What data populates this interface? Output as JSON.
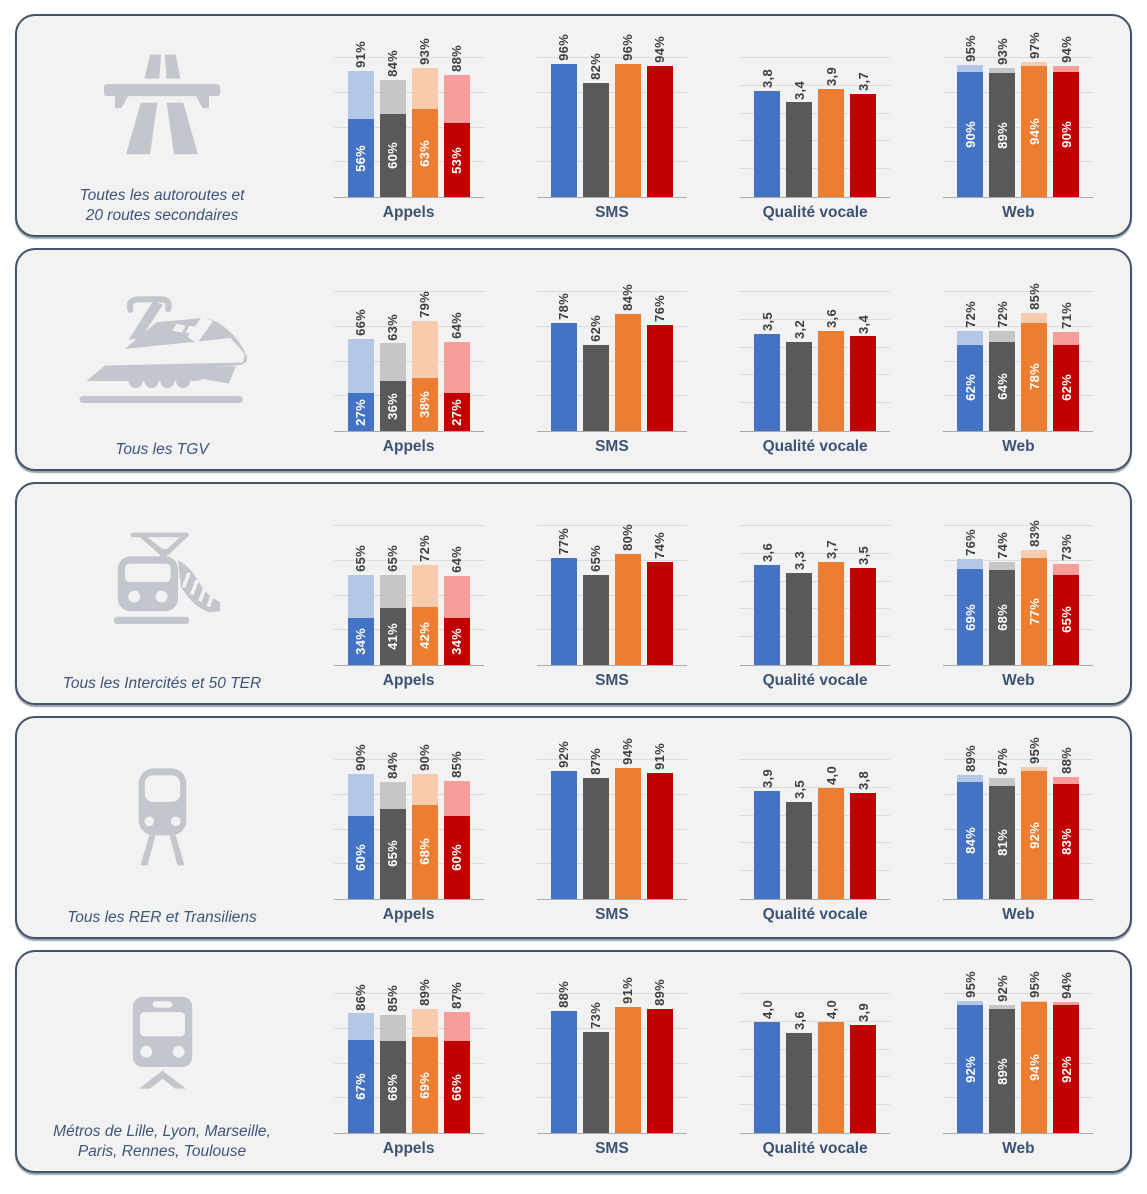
{
  "colors": {
    "page_background": "#FFFFFF",
    "panel_background": "#F2F2F3",
    "panel_border": "#44546A",
    "icon_gray": "#C3C6CC",
    "gridline": "#DBDBDB",
    "axis_baseline": "#ABABAB",
    "value_label": "#3F3F3F",
    "inner_value_label": "#FFFFFF",
    "chart_title": "#3C5472",
    "panel_label": "#3E5577"
  },
  "chart_data": {
    "type": "bar",
    "layout": "5 panels x 4 small bar charts, 4 bars per chart (series shown only by color: blue, dark-gray, orange, dark-red; stacked charts add a lighter tint for the upper segment)",
    "bar_colors": [
      "#4472C4",
      "#595959",
      "#ED7D31",
      "#C00000"
    ],
    "bar_colors_light": [
      "#B4C7E7",
      "#C6C6C6",
      "#F8CBAD",
      "#F79E9B"
    ],
    "percent_axis": {
      "ylim": [
        0,
        100
      ],
      "grid_step": 25
    },
    "score_axis": {
      "ylim": [
        0,
        5
      ],
      "grid_step": 1
    },
    "panels": [
      {
        "id": "autoroutes",
        "icon": "motorway-icon",
        "label_lines": [
          "Toutes les autoroutes et",
          "20 routes secondaires"
        ],
        "charts": [
          {
            "id": "appels",
            "title": "Appels",
            "kind": "stacked",
            "max": 100,
            "totals": [
              91,
              84,
              93,
              88
            ],
            "inner": [
              56,
              60,
              63,
              53
            ],
            "total_labels": [
              "91%",
              "84%",
              "93%",
              "88%"
            ],
            "inner_labels": [
              "56%",
              "60%",
              "63%",
              "53%"
            ]
          },
          {
            "id": "sms",
            "title": "SMS",
            "kind": "solid",
            "max": 100,
            "values": [
              96,
              82,
              96,
              94
            ],
            "labels": [
              "96%",
              "82%",
              "96%",
              "94%"
            ]
          },
          {
            "id": "qualite-vocale",
            "title": "Qualité vocale",
            "kind": "solid",
            "max": 5,
            "values": [
              3.8,
              3.4,
              3.9,
              3.7
            ],
            "labels": [
              "3,8",
              "3,4",
              "3,9",
              "3,7"
            ]
          },
          {
            "id": "web",
            "title": "Web",
            "kind": "stacked",
            "max": 100,
            "totals": [
              95,
              93,
              97,
              94
            ],
            "inner": [
              90,
              89,
              94,
              90
            ],
            "total_labels": [
              "95%",
              "93%",
              "97%",
              "94%"
            ],
            "inner_labels": [
              "90%",
              "89%",
              "94%",
              "90%"
            ]
          }
        ]
      },
      {
        "id": "tgv",
        "icon": "tgv-icon",
        "label_lines": [
          "Tous les TGV"
        ],
        "charts": [
          {
            "id": "appels",
            "title": "Appels",
            "kind": "stacked",
            "max": 100,
            "totals": [
              66,
              63,
              79,
              64
            ],
            "inner": [
              27,
              36,
              38,
              27
            ],
            "total_labels": [
              "66%",
              "63%",
              "79%",
              "64%"
            ],
            "inner_labels": [
              "27%",
              "36%",
              "38%",
              "27%"
            ]
          },
          {
            "id": "sms",
            "title": "SMS",
            "kind": "solid",
            "max": 100,
            "values": [
              78,
              62,
              84,
              76
            ],
            "labels": [
              "78%",
              "62%",
              "84%",
              "76%"
            ]
          },
          {
            "id": "qualite-vocale",
            "title": "Qualité vocale",
            "kind": "solid",
            "max": 5,
            "values": [
              3.5,
              3.2,
              3.6,
              3.4
            ],
            "labels": [
              "3,5",
              "3,2",
              "3,6",
              "3,4"
            ]
          },
          {
            "id": "web",
            "title": "Web",
            "kind": "stacked",
            "max": 100,
            "totals": [
              72,
              72,
              85,
              71
            ],
            "inner": [
              62,
              64,
              78,
              62
            ],
            "total_labels": [
              "72%",
              "72%",
              "85%",
              "71%"
            ],
            "inner_labels": [
              "62%",
              "64%",
              "78%",
              "62%"
            ]
          }
        ]
      },
      {
        "id": "intercites-ter",
        "icon": "intercites-train-icon",
        "label_lines": [
          "Tous les Intercités et 50 TER"
        ],
        "charts": [
          {
            "id": "appels",
            "title": "Appels",
            "kind": "stacked",
            "max": 100,
            "totals": [
              65,
              65,
              72,
              64
            ],
            "inner": [
              34,
              41,
              42,
              34
            ],
            "total_labels": [
              "65%",
              "65%",
              "72%",
              "64%"
            ],
            "inner_labels": [
              "34%",
              "41%",
              "42%",
              "34%"
            ]
          },
          {
            "id": "sms",
            "title": "SMS",
            "kind": "solid",
            "max": 100,
            "values": [
              77,
              65,
              80,
              74
            ],
            "labels": [
              "77%",
              "65%",
              "80%",
              "74%"
            ]
          },
          {
            "id": "qualite-vocale",
            "title": "Qualité vocale",
            "kind": "solid",
            "max": 5,
            "values": [
              3.6,
              3.3,
              3.7,
              3.5
            ],
            "labels": [
              "3,6",
              "3,3",
              "3,7",
              "3,5"
            ]
          },
          {
            "id": "web",
            "title": "Web",
            "kind": "stacked",
            "max": 100,
            "totals": [
              76,
              74,
              83,
              73
            ],
            "inner": [
              69,
              68,
              77,
              65
            ],
            "total_labels": [
              "76%",
              "74%",
              "83%",
              "73%"
            ],
            "inner_labels": [
              "69%",
              "68%",
              "77%",
              "65%"
            ]
          }
        ]
      },
      {
        "id": "rer-transiliens",
        "icon": "rer-icon",
        "label_lines": [
          "Tous les RER et Transiliens"
        ],
        "charts": [
          {
            "id": "appels",
            "title": "Appels",
            "kind": "stacked",
            "max": 100,
            "totals": [
              90,
              84,
              90,
              85
            ],
            "inner": [
              60,
              65,
              68,
              60
            ],
            "total_labels": [
              "90%",
              "84%",
              "90%",
              "85%"
            ],
            "inner_labels": [
              "60%",
              "65%",
              "68%",
              "60%"
            ]
          },
          {
            "id": "sms",
            "title": "SMS",
            "kind": "solid",
            "max": 100,
            "values": [
              92,
              87,
              94,
              91
            ],
            "labels": [
              "92%",
              "87%",
              "94%",
              "91%"
            ]
          },
          {
            "id": "qualite-vocale",
            "title": "Qualité vocale",
            "kind": "solid",
            "max": 5,
            "values": [
              3.9,
              3.5,
              4.0,
              3.8
            ],
            "labels": [
              "3,9",
              "3,5",
              "4,0",
              "3,8"
            ]
          },
          {
            "id": "web",
            "title": "Web",
            "kind": "stacked",
            "max": 100,
            "totals": [
              89,
              87,
              95,
              88
            ],
            "inner": [
              84,
              81,
              92,
              83
            ],
            "total_labels": [
              "89%",
              "87%",
              "95%",
              "88%"
            ],
            "inner_labels": [
              "84%",
              "81%",
              "92%",
              "83%"
            ]
          }
        ]
      },
      {
        "id": "metros",
        "icon": "metro-icon",
        "label_lines": [
          "Métros de Lille,  Lyon, Marseille,",
          "Paris, Rennes, Toulouse"
        ],
        "charts": [
          {
            "id": "appels",
            "title": "Appels",
            "kind": "stacked",
            "max": 100,
            "totals": [
              86,
              85,
              89,
              87
            ],
            "inner": [
              67,
              66,
              69,
              66
            ],
            "total_labels": [
              "86%",
              "85%",
              "89%",
              "87%"
            ],
            "inner_labels": [
              "67%",
              "66%",
              "69%",
              "66%"
            ]
          },
          {
            "id": "sms",
            "title": "SMS",
            "kind": "solid",
            "max": 100,
            "values": [
              88,
              73,
              91,
              89
            ],
            "labels": [
              "88%",
              "73%",
              "91%",
              "89%"
            ]
          },
          {
            "id": "qualite-vocale",
            "title": "Qualité vocale",
            "kind": "solid",
            "max": 5,
            "values": [
              4.0,
              3.6,
              4.0,
              3.9
            ],
            "labels": [
              "4,0",
              "3,6",
              "4,0",
              "3,9"
            ]
          },
          {
            "id": "web",
            "title": "Web",
            "kind": "stacked",
            "max": 100,
            "totals": [
              95,
              92,
              95,
              94
            ],
            "inner": [
              92,
              89,
              94,
              92
            ],
            "total_labels": [
              "95%",
              "92%",
              "95%",
              "94%"
            ],
            "inner_labels": [
              "92%",
              "89%",
              "94%",
              "92%"
            ]
          }
        ]
      }
    ]
  }
}
